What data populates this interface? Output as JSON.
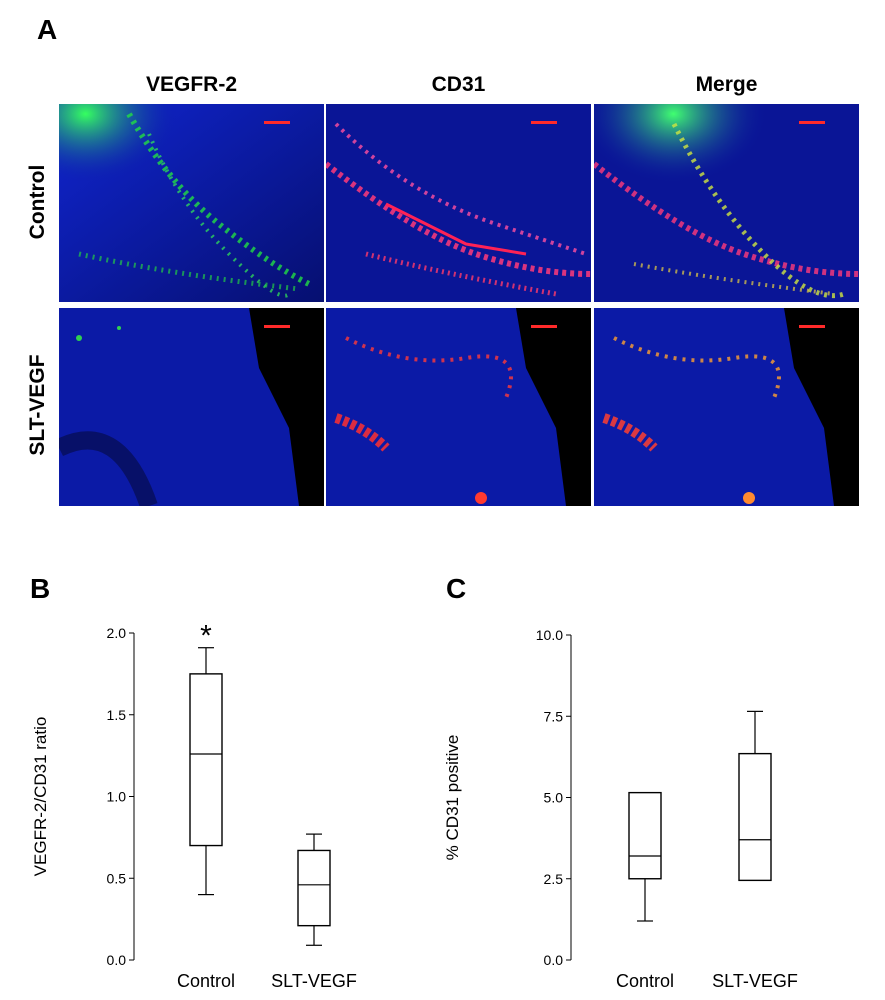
{
  "panels": {
    "a_label": "A",
    "b_label": "B",
    "c_label": "C"
  },
  "micrographs": {
    "columns": [
      "VEGFR-2",
      "CD31",
      "Merge"
    ],
    "rows": [
      "Control",
      "SLT-VEGF"
    ]
  },
  "chart_data": [
    {
      "type": "box",
      "panel": "B",
      "categories": [
        "Control",
        "SLT-VEGF"
      ],
      "ylabel": "VEGFR-2/CD31 ratio",
      "ylim": [
        0.0,
        2.0
      ],
      "yticks": [
        "0.0",
        "0.5",
        "1.0",
        "1.5",
        "2.0"
      ],
      "boxes": [
        {
          "category": "Control",
          "whisker_low": 0.4,
          "q1": 0.7,
          "median": 1.26,
          "q3": 1.75,
          "whisker_high": 1.91
        },
        {
          "category": "SLT-VEGF",
          "whisker_low": 0.09,
          "q1": 0.21,
          "median": 0.46,
          "q3": 0.67,
          "whisker_high": 0.77
        }
      ],
      "annotations": [
        {
          "category": "Control",
          "text": "*"
        }
      ]
    },
    {
      "type": "box",
      "panel": "C",
      "categories": [
        "Control",
        "SLT-VEGF"
      ],
      "ylabel": "% CD31 positive",
      "ylim": [
        0.0,
        10.0
      ],
      "yticks": [
        "0.0",
        "2.5",
        "5.0",
        "7.5",
        "10.0"
      ],
      "boxes": [
        {
          "category": "Control",
          "whisker_low": 1.2,
          "q1": 2.5,
          "median": 3.2,
          "q3": 5.15,
          "whisker_high": 5.15
        },
        {
          "category": "SLT-VEGF",
          "whisker_low": 2.45,
          "q1": 2.45,
          "median": 3.7,
          "q3": 6.35,
          "whisker_high": 7.65
        }
      ],
      "annotations": []
    }
  ]
}
